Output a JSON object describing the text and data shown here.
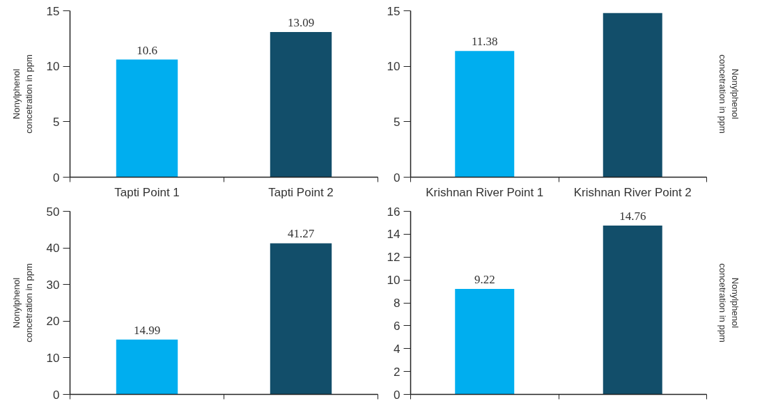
{
  "chart_data": [
    {
      "type": "bar",
      "ylabel": "Nonylphenol\nconcetration in ppm",
      "categories": [
        "Tapti Point 1",
        "Tapti Point 2"
      ],
      "values": [
        10.6,
        13.09
      ],
      "colors": [
        "#00aeef",
        "#124e6a"
      ],
      "ylim": [
        0,
        15
      ],
      "yticks": [
        0,
        5,
        10,
        15
      ],
      "data_labels": true
    },
    {
      "type": "bar",
      "ylabel": "Nonylphenol\nconcetration in ppm",
      "categories": [
        "Krishnan River Point 1",
        "Krishnan River Point 2"
      ],
      "values": [
        11.38,
        14.8
      ],
      "value_labels": [
        "11.38",
        null
      ],
      "colors": [
        "#00aeef",
        "#124e6a"
      ],
      "ylim": [
        0,
        15
      ],
      "yticks": [
        0,
        5,
        10,
        15
      ]
    },
    {
      "type": "bar",
      "ylabel": "Nonylphenol\nconcetration in ppm",
      "categories": [
        null,
        null
      ],
      "values": [
        14.99,
        41.27
      ],
      "colors": [
        "#00aeef",
        "#124e6a"
      ],
      "ylim": [
        0,
        50
      ],
      "yticks": [
        0,
        10,
        20,
        30,
        40,
        50
      ],
      "data_labels": true,
      "tick_labels": "y"
    },
    {
      "type": "bar",
      "ylabel": "Nonylphenol\nconcetration in ppm",
      "categories": [
        null,
        null
      ],
      "values": [
        9.22,
        14.76
      ],
      "colors": [
        "#00aeef",
        "#124e6a"
      ],
      "ylim": [
        0,
        16
      ],
      "yticks": [
        0,
        2,
        4,
        6,
        8,
        10,
        12,
        14,
        16
      ],
      "data_labels": true,
      "tick_labels": "y"
    }
  ]
}
